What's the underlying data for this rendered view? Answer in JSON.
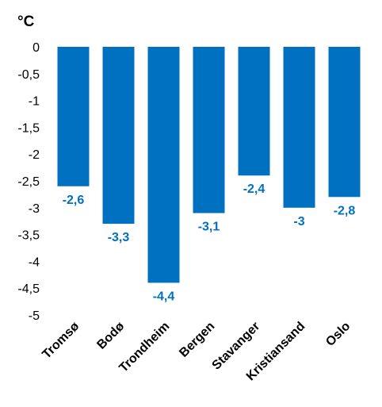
{
  "chart_data": {
    "type": "bar",
    "unit_label": "°C",
    "categories": [
      "Tromsø",
      "Bodø",
      "Trondheim",
      "Bergen",
      "Stavanger",
      "Kristiansand",
      "Oslo"
    ],
    "values": [
      -2.6,
      -3.3,
      -4.4,
      -3.1,
      -2.4,
      -3,
      -2.8
    ],
    "data_labels": [
      "-2,6",
      "-3,3",
      "-4,4",
      "-3,1",
      "-2,4",
      "-3",
      "-2,8"
    ],
    "y_ticks": [
      "0",
      "-0,5",
      "-1",
      "-1,5",
      "-2",
      "-2,5",
      "-3",
      "-3,5",
      "-4",
      "-4,5",
      "-5"
    ],
    "ylim": [
      -5,
      0
    ],
    "grid": false,
    "legend": "none",
    "bar_color": "#0070C0",
    "label_color": "#0070C0"
  }
}
